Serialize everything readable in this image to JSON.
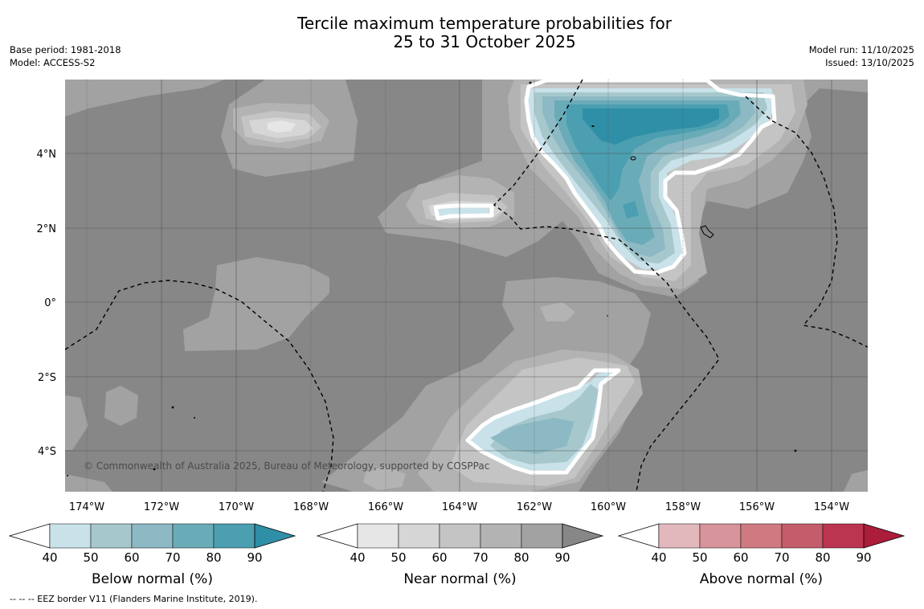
{
  "title_line1": "Tercile maximum temperature probabilities for",
  "title_line2": "25 to 31 October 2025",
  "meta_left": [
    "Base period: 1981-2018",
    "Model: ACCESS-S2"
  ],
  "meta_right": [
    "Model run: 11/10/2025",
    "Issued: 13/10/2025"
  ],
  "lon_labels": [
    "174°W",
    "172°W",
    "170°W",
    "168°W",
    "166°W",
    "164°W",
    "162°W",
    "160°W",
    "158°W",
    "156°W",
    "154°W"
  ],
  "lat_labels": [
    "4°N",
    "2°N",
    "0°",
    "2°S",
    "4°S"
  ],
  "copyright": "© Commonwealth of Australia 2025, Bureau of Meteorology, supported by COSPPac",
  "colorbars": [
    {
      "label": "Below normal (%)",
      "ticks": [
        "40",
        "50",
        "60",
        "70",
        "80",
        "90"
      ],
      "colors": [
        "#ffffff",
        "#c9e2e9",
        "#a6c8cd",
        "#8db9c4",
        "#6aabb8",
        "#4b9fb1",
        "#2f8fa6"
      ]
    },
    {
      "label": "Near normal (%)",
      "ticks": [
        "40",
        "50",
        "60",
        "70",
        "80",
        "90"
      ],
      "colors": [
        "#ffffff",
        "#e6e6e6",
        "#d6d6d6",
        "#c4c4c4",
        "#b3b3b3",
        "#a2a2a2",
        "#878787"
      ]
    },
    {
      "label": "Above normal (%)",
      "ticks": [
        "40",
        "50",
        "60",
        "70",
        "80",
        "90"
      ],
      "colors": [
        "#ffffff",
        "#e3b8bd",
        "#d8949b",
        "#cf7a81",
        "#c55c6b",
        "#bb3550",
        "#ac1c3b"
      ]
    }
  ],
  "footnote": "--  --  -- EEZ border V11 (Flanders Marine Institute, 2019)."
}
